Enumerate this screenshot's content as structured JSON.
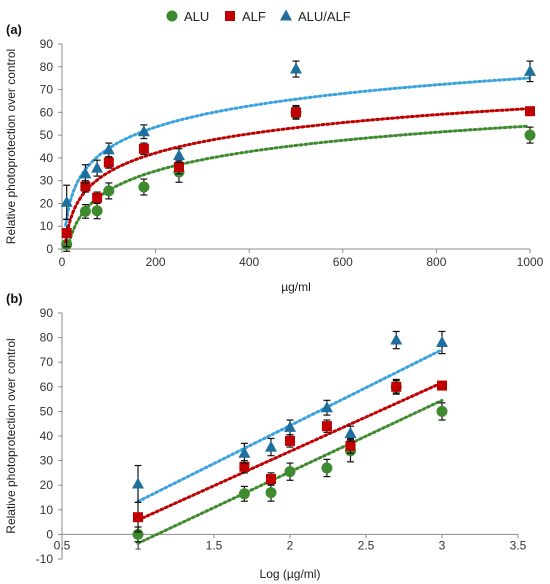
{
  "legend": {
    "position": "top",
    "entries": [
      {
        "label": "ALU",
        "marker": "circle",
        "color": "#3f8a2e"
      },
      {
        "label": "ALF",
        "marker": "square",
        "color": "#c00000"
      },
      {
        "label": "ALU/ALF",
        "marker": "triangle",
        "color": "#1f6f9e"
      }
    ]
  },
  "chart_data": [
    {
      "panel_label": "(a)",
      "type": "scatter",
      "xlabel": "µg/ml",
      "ylabel": "Relative  photoprotection over control",
      "xlim": [
        0,
        1000
      ],
      "ylim": [
        0,
        90
      ],
      "xticks": [
        0,
        200,
        400,
        600,
        800,
        1000
      ],
      "yticks": [
        0,
        10,
        20,
        30,
        40,
        50,
        60,
        70,
        80,
        90
      ],
      "grid": false,
      "trendline": "logarithmic, dotted",
      "series": [
        {
          "name": "ALU",
          "color": "#3f8a2e",
          "marker": "circle",
          "x": [
            10,
            50,
            75,
            100,
            175,
            250,
            500,
            1000
          ],
          "y": [
            2,
            16.5,
            16.8,
            25.5,
            27.2,
            33.8,
            60,
            50
          ],
          "err": [
            3,
            3,
            3.5,
            3.5,
            3.5,
            4.5,
            2.5,
            3.5
          ]
        },
        {
          "name": "ALF",
          "color": "#c00000",
          "marker": "square",
          "x": [
            10,
            50,
            75,
            100,
            175,
            250,
            500,
            1000
          ],
          "y": [
            7,
            27.5,
            22.5,
            38,
            44,
            36,
            60,
            60.5
          ],
          "err": [
            6,
            2.5,
            2.5,
            2.5,
            2.5,
            3,
            3,
            0
          ]
        },
        {
          "name": "ALU/ALF",
          "color": "#1f6f9e",
          "marker": "triangle",
          "x": [
            10,
            50,
            75,
            100,
            175,
            250,
            500,
            1000
          ],
          "y": [
            20.5,
            33,
            35.5,
            43.5,
            51.5,
            41,
            79,
            78
          ],
          "err": [
            7.5,
            4,
            3.5,
            3,
            3,
            3,
            3.5,
            4.5
          ]
        }
      ]
    },
    {
      "panel_label": "(b)",
      "type": "scatter",
      "xlabel": "Log (µg/ml)",
      "ylabel": "Relative  photoprotection over control",
      "xlim": [
        0.5,
        3.5
      ],
      "ylim": [
        -10,
        90
      ],
      "xticks": [
        0.5,
        1,
        1.5,
        2,
        2.5,
        3,
        3.5
      ],
      "yticks": [
        -10,
        0,
        10,
        20,
        30,
        40,
        50,
        60,
        70,
        80,
        90
      ],
      "grid": false,
      "trendline": "linear, dotted",
      "series": [
        {
          "name": "ALU",
          "color": "#3f8a2e",
          "marker": "circle",
          "x": [
            1,
            1.7,
            1.875,
            2,
            2.243,
            2.398,
            2.699,
            3
          ],
          "y": [
            0,
            16.5,
            17,
            25.5,
            27,
            34,
            60,
            50
          ],
          "err": [
            3,
            3,
            3.5,
            3.5,
            3.5,
            4.5,
            2.5,
            3.5
          ]
        },
        {
          "name": "ALF",
          "color": "#c00000",
          "marker": "square",
          "x": [
            1,
            1.7,
            1.875,
            2,
            2.243,
            2.398,
            2.699,
            3
          ],
          "y": [
            7,
            27.5,
            22.5,
            38,
            44,
            36,
            60,
            60.5
          ],
          "err": [
            6,
            2.5,
            2.5,
            2.5,
            2.5,
            3,
            3,
            0
          ]
        },
        {
          "name": "ALU/ALF",
          "color": "#1f6f9e",
          "marker": "triangle",
          "x": [
            1,
            1.7,
            1.875,
            2,
            2.243,
            2.398,
            2.699,
            3
          ],
          "y": [
            20.5,
            33,
            35.5,
            43.5,
            51.5,
            41,
            79,
            78
          ],
          "err": [
            7.5,
            4,
            3.5,
            3,
            3,
            3,
            3.5,
            4.5
          ]
        }
      ]
    }
  ]
}
